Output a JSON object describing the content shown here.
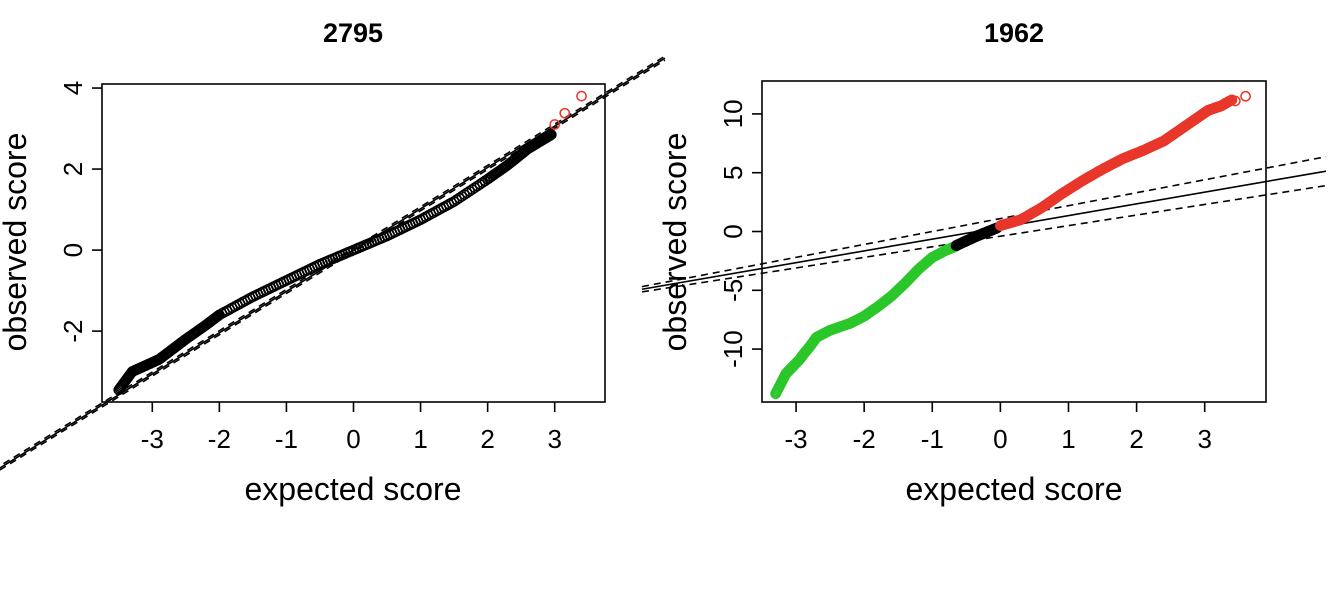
{
  "colors": {
    "normal": "#000000",
    "high": "#e8372a",
    "low": "#2bc62b",
    "frame": "#000000"
  },
  "chart_data": [
    {
      "type": "scatter",
      "title": "2795",
      "xlabel": "expected score",
      "ylabel": "observed score",
      "xlim": [
        -3.75,
        3.75
      ],
      "ylim": [
        -3.75,
        4.1
      ],
      "xticks": [
        -3,
        -2,
        -1,
        0,
        1,
        2,
        3
      ],
      "yticks": [
        -2,
        0,
        2,
        4
      ],
      "grid": false,
      "reference_line": {
        "intercept": 0.0,
        "slope": 1.02
      },
      "confidence_band": [
        {
          "intercept": 0.05,
          "slope": 1.02
        },
        {
          "intercept": -0.05,
          "slope": 1.02
        }
      ],
      "series": [
        {
          "color_key": "normal",
          "curve": [
            [
              -3.5,
              -3.45
            ],
            [
              -3.3,
              -3.0
            ],
            [
              -3.1,
              -2.85
            ],
            [
              -2.9,
              -2.7
            ],
            [
              -2.7,
              -2.45
            ],
            [
              -2.5,
              -2.2
            ],
            [
              -2.2,
              -1.85
            ],
            [
              -2.0,
              -1.6
            ],
            [
              -1.5,
              -1.15
            ],
            [
              -1.0,
              -0.75
            ],
            [
              -0.5,
              -0.35
            ],
            [
              0.0,
              0.0
            ],
            [
              0.5,
              0.35
            ],
            [
              1.0,
              0.75
            ],
            [
              1.5,
              1.2
            ],
            [
              2.0,
              1.75
            ],
            [
              2.3,
              2.1
            ],
            [
              2.6,
              2.5
            ],
            [
              2.8,
              2.7
            ],
            [
              2.95,
              2.85
            ]
          ]
        },
        {
          "color_key": "high",
          "points": [
            [
              3.0,
              3.1
            ],
            [
              3.15,
              3.38
            ],
            [
              3.4,
              3.8
            ]
          ]
        }
      ]
    },
    {
      "type": "scatter",
      "title": "1962",
      "xlabel": "expected score",
      "ylabel": "observed score",
      "xlim": [
        -3.5,
        3.9
      ],
      "ylim": [
        -14.5,
        12.8
      ],
      "xticks": [
        -3,
        -2,
        -1,
        0,
        1,
        2,
        3
      ],
      "yticks": [
        -10,
        -5,
        0,
        5,
        10
      ],
      "grid": false,
      "reference_line": {
        "intercept": 0.35,
        "slope": 1.0
      },
      "confidence_band": [
        {
          "intercept": 1.1,
          "slope": 1.1
        },
        {
          "intercept": -0.4,
          "slope": 0.9
        }
      ],
      "series": [
        {
          "color_key": "low",
          "curve": [
            [
              -3.3,
              -13.8
            ],
            [
              -3.15,
              -12.1
            ],
            [
              -3.05,
              -11.5
            ],
            [
              -2.95,
              -10.9
            ],
            [
              -2.9,
              -10.5
            ],
            [
              -2.8,
              -9.8
            ],
            [
              -2.7,
              -9.0
            ],
            [
              -2.5,
              -8.4
            ],
            [
              -2.2,
              -7.8
            ],
            [
              -2.0,
              -7.2
            ],
            [
              -1.8,
              -6.4
            ],
            [
              -1.6,
              -5.5
            ],
            [
              -1.4,
              -4.4
            ],
            [
              -1.2,
              -3.2
            ],
            [
              -1.0,
              -2.2
            ],
            [
              -0.8,
              -1.6
            ],
            [
              -0.65,
              -1.25
            ]
          ]
        },
        {
          "color_key": "normal",
          "curve": [
            [
              -0.65,
              -1.2
            ],
            [
              -0.5,
              -0.8
            ],
            [
              -0.35,
              -0.4
            ],
            [
              -0.2,
              -0.05
            ],
            [
              -0.05,
              0.3
            ]
          ]
        },
        {
          "color_key": "high",
          "curve": [
            [
              0.0,
              0.5
            ],
            [
              0.3,
              1.0
            ],
            [
              0.6,
              2.0
            ],
            [
              0.9,
              3.2
            ],
            [
              1.2,
              4.3
            ],
            [
              1.5,
              5.3
            ],
            [
              1.8,
              6.2
            ],
            [
              2.1,
              6.9
            ],
            [
              2.4,
              7.7
            ],
            [
              2.6,
              8.5
            ],
            [
              2.8,
              9.3
            ],
            [
              2.95,
              9.9
            ],
            [
              3.05,
              10.3
            ],
            [
              3.15,
              10.5
            ],
            [
              3.25,
              10.7
            ],
            [
              3.4,
              11.2
            ]
          ],
          "points": [
            [
              3.3,
              10.9
            ],
            [
              3.45,
              11.1
            ],
            [
              3.6,
              11.5
            ]
          ]
        }
      ]
    }
  ]
}
